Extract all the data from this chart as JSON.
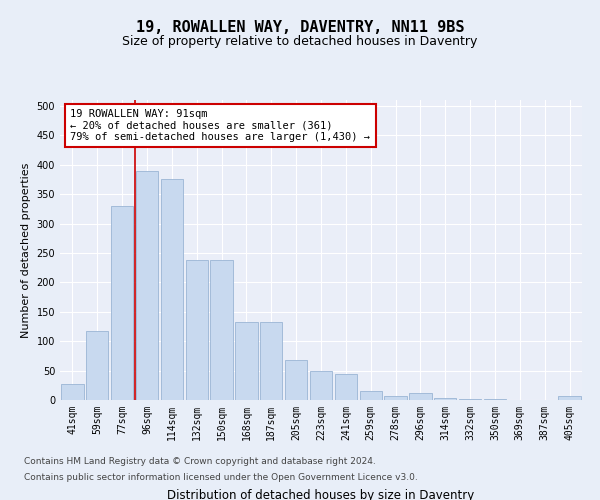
{
  "title": "19, ROWALLEN WAY, DAVENTRY, NN11 9BS",
  "subtitle": "Size of property relative to detached houses in Daventry",
  "xlabel": "Distribution of detached houses by size in Daventry",
  "ylabel": "Number of detached properties",
  "categories": [
    "41sqm",
    "59sqm",
    "77sqm",
    "96sqm",
    "114sqm",
    "132sqm",
    "150sqm",
    "168sqm",
    "187sqm",
    "205sqm",
    "223sqm",
    "241sqm",
    "259sqm",
    "278sqm",
    "296sqm",
    "314sqm",
    "332sqm",
    "350sqm",
    "369sqm",
    "387sqm",
    "405sqm"
  ],
  "values": [
    27,
    118,
    330,
    390,
    375,
    238,
    238,
    133,
    133,
    68,
    50,
    44,
    15,
    7,
    12,
    4,
    1,
    1,
    0,
    0,
    6
  ],
  "bar_color": "#c8d9ef",
  "bar_edge_color": "#9ab5d5",
  "marker_color": "#cc0000",
  "annotation_title": "19 ROWALLEN WAY: 91sqm",
  "annotation_line1": "← 20% of detached houses are smaller (361)",
  "annotation_line2": "79% of semi-detached houses are larger (1,430) →",
  "annotation_box_color": "#cc0000",
  "ylim": [
    0,
    510
  ],
  "yticks": [
    0,
    50,
    100,
    150,
    200,
    250,
    300,
    350,
    400,
    450,
    500
  ],
  "footer_line1": "Contains HM Land Registry data © Crown copyright and database right 2024.",
  "footer_line2": "Contains public sector information licensed under the Open Government Licence v3.0.",
  "bg_color": "#e8eef8",
  "plot_bg_color": "#eaeef8",
  "title_fontsize": 11,
  "subtitle_fontsize": 9,
  "xlabel_fontsize": 8.5,
  "ylabel_fontsize": 8,
  "tick_fontsize": 7,
  "annot_fontsize": 7.5,
  "footer_fontsize": 6.5
}
